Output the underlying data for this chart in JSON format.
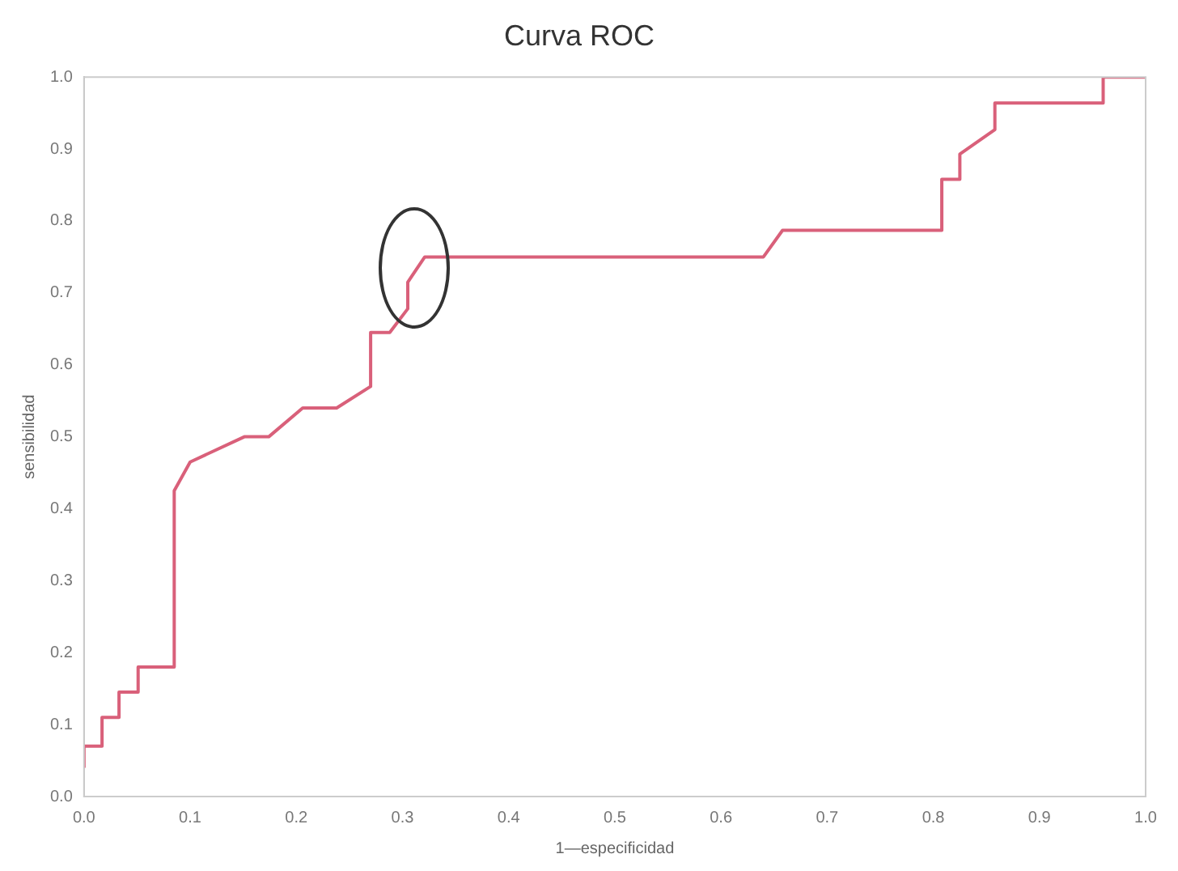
{
  "chart_data": {
    "type": "line",
    "title": "Curva ROC",
    "xlabel": "1—especificidad",
    "ylabel": "sensibilidad",
    "x": [
      0,
      0,
      0.017,
      0.017,
      0.033,
      0.033,
      0.051,
      0.051,
      0.085,
      0.085,
      0.1,
      0.151,
      0.174,
      0.206,
      0.238,
      0.27,
      0.27,
      0.288,
      0.305,
      0.305,
      0.321,
      0.64,
      0.658,
      0.808,
      0.808,
      0.825,
      0.825,
      0.858,
      0.858,
      0.96,
      0.96,
      1
    ],
    "series": [
      {
        "color": "#d9607a",
        "values": [
          0.04,
          0.07,
          0.07,
          0.11,
          0.11,
          0.145,
          0.145,
          0.18,
          0.18,
          0.425,
          0.465,
          0.5,
          0.5,
          0.54,
          0.54,
          0.57,
          0.645,
          0.645,
          0.678,
          0.715,
          0.75,
          0.75,
          0.787,
          0.787,
          0.858,
          0.858,
          0.893,
          0.927,
          0.964,
          0.964,
          1,
          1
        ]
      }
    ],
    "xlim": [
      0,
      1
    ],
    "ylim": [
      0,
      1
    ],
    "xticks": [
      {
        "value": 0,
        "label": "0.0"
      },
      0.1,
      0.2,
      0.3,
      0.4,
      0.5,
      0.6,
      0.7,
      0.8,
      0.9,
      {
        "value": 1,
        "label": "1.0"
      }
    ],
    "yticks": [
      {
        "value": 0,
        "label": "0.0"
      },
      0.1,
      0.2,
      0.3,
      0.4,
      0.5,
      0.6,
      0.7,
      0.8,
      0.9,
      {
        "value": 1,
        "label": "1.0"
      }
    ],
    "grid": false,
    "legend": false,
    "marker": "none"
  }
}
